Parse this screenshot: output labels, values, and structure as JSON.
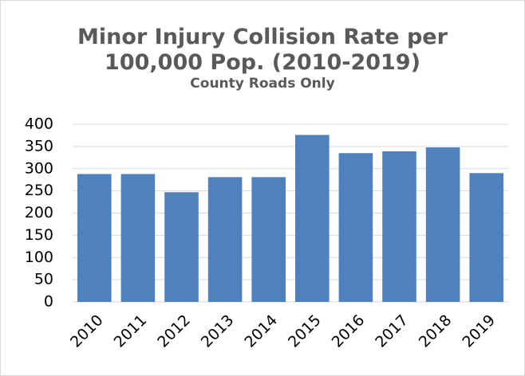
{
  "chart_data": {
    "type": "bar",
    "title": "Minor Injury Collision Rate per 100,000 Pop. (2010-2019)",
    "subtitle": "County Roads Only",
    "categories": [
      "2010",
      "2011",
      "2012",
      "2013",
      "2014",
      "2015",
      "2016",
      "2017",
      "2018",
      "2019"
    ],
    "values": [
      288,
      288,
      247,
      281,
      281,
      376,
      335,
      339,
      348,
      290
    ],
    "color": "#4f81bd",
    "ylim": [
      0,
      400
    ],
    "yticks": [
      0,
      50,
      100,
      150,
      200,
      250,
      300,
      350,
      400
    ],
    "grid": true
  }
}
